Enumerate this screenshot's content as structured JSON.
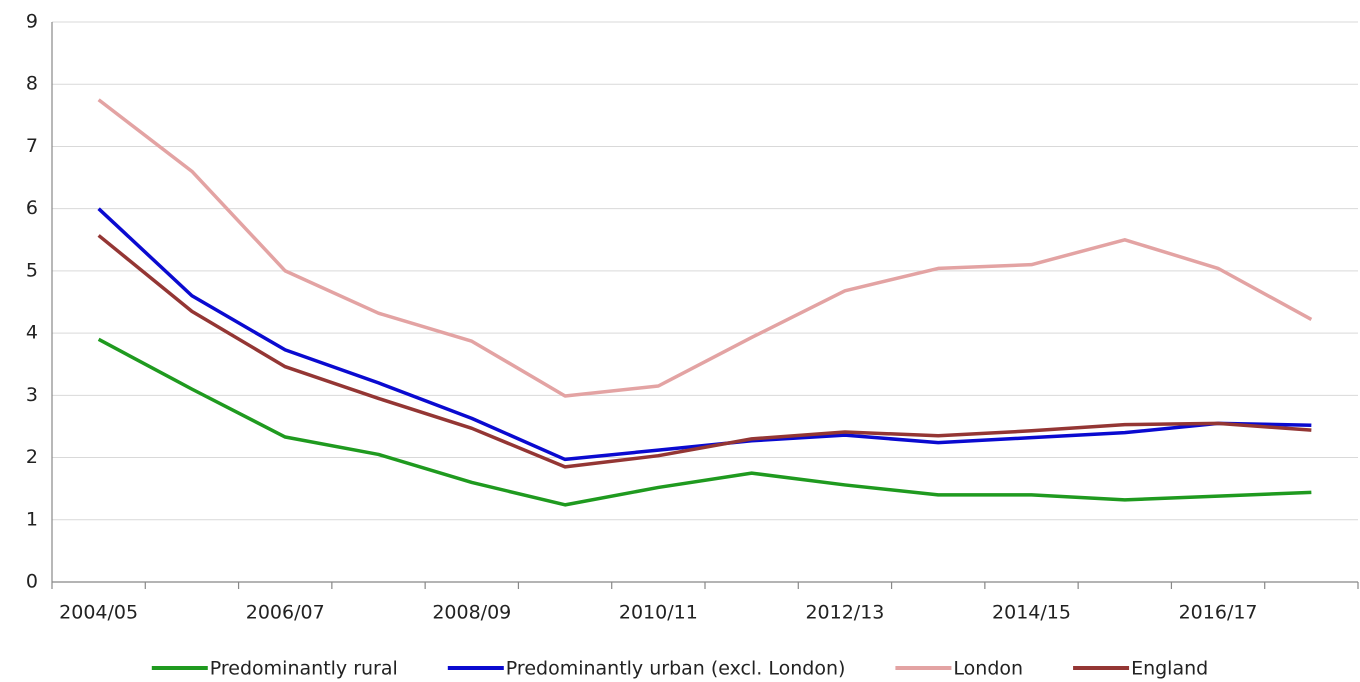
{
  "chart_data": {
    "type": "line",
    "categories": [
      "2004/05",
      null,
      "2006/07",
      null,
      "2008/09",
      null,
      "2010/11",
      null,
      "2012/13",
      null,
      "2014/15",
      null,
      "2016/17",
      null
    ],
    "series": [
      {
        "name": "Predominantly rural",
        "color": "#1f9a1f",
        "values": [
          3.9,
          3.1,
          2.33,
          2.05,
          1.6,
          1.24,
          1.52,
          1.75,
          1.56,
          1.4,
          1.4,
          1.32,
          1.38,
          1.44
        ]
      },
      {
        "name": "Predominantly urban (excl. London)",
        "color": "#0a0ad0",
        "values": [
          6.0,
          4.6,
          3.73,
          3.2,
          2.63,
          1.97,
          2.12,
          2.27,
          2.36,
          2.24,
          2.32,
          2.4,
          2.55,
          2.52
        ]
      },
      {
        "name": "London",
        "color": "#e3a3a3",
        "values": [
          7.75,
          6.6,
          5.0,
          4.32,
          3.87,
          2.99,
          3.15,
          3.93,
          4.68,
          5.04,
          5.1,
          5.5,
          5.04,
          4.22
        ]
      },
      {
        "name": "England",
        "color": "#943634",
        "values": [
          5.57,
          4.35,
          3.46,
          2.95,
          2.47,
          1.85,
          2.03,
          2.3,
          2.41,
          2.35,
          2.43,
          2.53,
          2.55,
          2.44
        ]
      }
    ],
    "ylim": [
      0,
      9
    ],
    "yticks": [
      0,
      1,
      2,
      3,
      4,
      5,
      6,
      7,
      8,
      9
    ],
    "grid": true,
    "legend": "bottom"
  }
}
